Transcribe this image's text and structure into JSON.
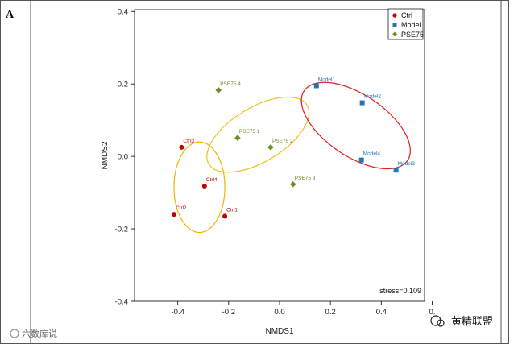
{
  "panel_label": "A",
  "chart_data": {
    "type": "scatter",
    "title": "",
    "xlabel": "NMDS1",
    "ylabel": "NMDS2",
    "xlim": [
      -0.57,
      0.57
    ],
    "ylim": [
      -0.4,
      0.405
    ],
    "xticks": [
      -0.4,
      -0.2,
      0.0,
      0.2,
      0.4,
      0.6
    ],
    "xtick_labels": [
      "-0.4",
      "-0.2",
      "0.0",
      "0.2",
      "0.4",
      "0."
    ],
    "yticks": [
      -0.4,
      -0.2,
      0.0,
      0.2,
      0.4
    ],
    "ytick_labels": [
      "-0.4",
      "-0.2",
      "0.0",
      "0.2",
      "0.4"
    ],
    "legend_position": "top-right",
    "series": [
      {
        "name": "Ctrl",
        "color": "#c00000",
        "marker": "circle",
        "points": [
          {
            "label": "Ctrl3",
            "x": -0.385,
            "y": 0.025
          },
          {
            "label": "Ctrl4",
            "x": -0.295,
            "y": -0.082
          },
          {
            "label": "Ctrl2",
            "x": -0.415,
            "y": -0.16
          },
          {
            "label": "Ctrl1",
            "x": -0.215,
            "y": -0.165
          }
        ]
      },
      {
        "name": "Model",
        "color": "#1f77b4",
        "marker": "square",
        "points": [
          {
            "label": "Model1",
            "x": 0.145,
            "y": 0.195
          },
          {
            "label": "Model2",
            "x": 0.325,
            "y": 0.148
          },
          {
            "label": "Model4",
            "x": 0.322,
            "y": -0.01
          },
          {
            "label": "Model3",
            "x": 0.458,
            "y": -0.038
          }
        ]
      },
      {
        "name": "PSE75",
        "color": "#6b8e23",
        "marker": "diamond",
        "points": [
          {
            "label": "PSE75 4",
            "x": -0.24,
            "y": 0.183
          },
          {
            "label": "PSE75 1",
            "x": -0.165,
            "y": 0.051
          },
          {
            "label": "PSE75 2",
            "x": -0.035,
            "y": 0.025
          },
          {
            "label": "PSE75 3",
            "x": 0.053,
            "y": -0.077
          }
        ]
      }
    ],
    "ellipses": [
      {
        "group": "Ctrl",
        "color": "#f0b400",
        "cx": -0.315,
        "cy": -0.085,
        "rx": 0.1,
        "ry": 0.125,
        "angle_deg": 0
      },
      {
        "group": "PSE75",
        "color": "#f0c020",
        "cx": -0.085,
        "cy": 0.06,
        "rx": 0.225,
        "ry": 0.075,
        "angle_deg": -31
      },
      {
        "group": "Model",
        "color": "#e02020",
        "cx": 0.3,
        "cy": 0.085,
        "rx": 0.245,
        "ry": 0.085,
        "angle_deg": 34
      }
    ],
    "annotations": [
      "stress=0.109"
    ]
  },
  "watermarks": {
    "left": "六数库说",
    "right": "黄精联盟"
  }
}
